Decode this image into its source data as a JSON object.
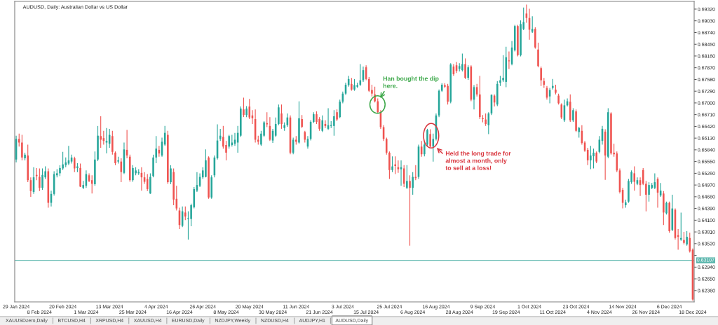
{
  "chart_data": {
    "type": "candlestick",
    "title": "AUDUSD, Daily: Australian Dollar vs US Dollar",
    "categories": [
      "29 Jan 2024",
      null,
      null,
      null,
      null,
      null,
      null,
      null,
      "8 Feb 2024",
      null,
      null,
      null,
      null,
      null,
      null,
      null,
      "20 Feb 2024",
      null,
      null,
      null,
      null,
      null,
      null,
      null,
      "1 Mar 2024",
      null,
      null,
      null,
      null,
      null,
      null,
      null,
      "13 Mar 2024",
      null,
      null,
      null,
      null,
      null,
      null,
      null,
      "25 Mar 2024",
      null,
      null,
      null,
      null,
      null,
      null,
      null,
      "4 Apr 2024",
      null,
      null,
      null,
      null,
      null,
      null,
      null,
      "16 Apr 2024",
      null,
      null,
      null,
      null,
      null,
      null,
      null,
      "26 Apr 2024",
      null,
      null,
      null,
      null,
      null,
      null,
      null,
      "8 May 2024",
      null,
      null,
      null,
      null,
      null,
      null,
      null,
      "20 May 2024",
      null,
      null,
      null,
      null,
      null,
      null,
      null,
      "30 May 2024",
      null,
      null,
      null,
      null,
      null,
      null,
      null,
      "11 Jun 2024",
      null,
      null,
      null,
      null,
      null,
      null,
      null,
      "21 Jun 2024",
      null,
      null,
      null,
      null,
      null,
      null,
      null,
      "3 Jul 2024",
      null,
      null,
      null,
      null,
      null,
      null,
      null,
      "15 Jul 2024",
      null,
      null,
      null,
      null,
      null,
      null,
      null,
      "25 Jul 2024",
      null,
      null,
      null,
      null,
      null,
      null,
      null,
      "6 Aug 2024",
      null,
      null,
      null,
      null,
      null,
      null,
      null,
      "16 Aug 2024",
      null,
      null,
      null,
      null,
      null,
      null,
      null,
      "28 Aug 2024",
      null,
      null,
      null,
      null,
      null,
      null,
      null,
      "9 Sep 2024",
      null,
      null,
      null,
      null,
      null,
      null,
      null,
      "19 Sep 2024",
      null,
      null,
      null,
      null,
      null,
      null,
      null,
      "1 Oct 2024",
      null,
      null,
      null,
      null,
      null,
      null,
      null,
      "11 Oct 2024",
      null,
      null,
      null,
      null,
      null,
      null,
      null,
      "23 Oct 2024",
      null,
      null,
      null,
      null,
      null,
      null,
      null,
      "4 Nov 2024",
      null,
      null,
      null,
      null,
      null,
      null,
      null,
      "14 Nov 2024",
      null,
      null,
      null,
      null,
      null,
      null,
      null,
      "26 Nov 2024",
      null,
      null,
      null,
      null,
      null,
      null,
      null,
      "6 Dec 2024",
      null,
      null,
      null,
      null,
      null,
      null,
      null,
      "18 Dec 2024"
    ],
    "ohlc": [
      [
        0.656,
        0.6619,
        0.6553,
        0.6611
      ],
      [
        0.6611,
        0.6624,
        0.6592,
        0.6602
      ],
      [
        0.6602,
        0.6621,
        0.6558,
        0.6565
      ],
      [
        0.6563,
        0.6577,
        0.6558,
        0.6572
      ],
      [
        0.657,
        0.6597,
        0.6504,
        0.6509
      ],
      [
        0.6509,
        0.6516,
        0.6468,
        0.6482
      ],
      [
        0.648,
        0.6541,
        0.6475,
        0.6516
      ],
      [
        0.6522,
        0.6539,
        0.6509,
        0.6519
      ],
      [
        0.6517,
        0.6538,
        0.6482,
        0.649
      ],
      [
        0.649,
        0.6538,
        0.6485,
        0.6522
      ],
      [
        0.6516,
        0.6543,
        0.6512,
        0.6531
      ],
      [
        0.6531,
        0.6538,
        0.6441,
        0.6453
      ],
      [
        0.6453,
        0.6483,
        0.6444,
        0.6475
      ],
      [
        0.6475,
        0.6531,
        0.6471,
        0.6524
      ],
      [
        0.6521,
        0.6536,
        0.6516,
        0.6526
      ],
      [
        0.6526,
        0.6546,
        0.6519,
        0.6539
      ],
      [
        0.6538,
        0.6579,
        0.6534,
        0.6548
      ],
      [
        0.6546,
        0.6565,
        0.6541,
        0.6553
      ],
      [
        0.655,
        0.6594,
        0.6546,
        0.6558
      ],
      [
        0.6555,
        0.6572,
        0.655,
        0.6565
      ],
      [
        0.6563,
        0.6567,
        0.6529,
        0.6538
      ],
      [
        0.6539,
        0.6551,
        0.6529,
        0.6543
      ],
      [
        0.6539,
        0.655,
        0.6492,
        0.6493
      ],
      [
        0.649,
        0.6507,
        0.6487,
        0.6497
      ],
      [
        0.6495,
        0.6533,
        0.649,
        0.6524
      ],
      [
        0.6521,
        0.6526,
        0.6504,
        0.6507
      ],
      [
        0.6509,
        0.6521,
        0.6476,
        0.65
      ],
      [
        0.6499,
        0.658,
        0.6495,
        0.656
      ],
      [
        0.656,
        0.6643,
        0.6556,
        0.6619
      ],
      [
        0.6618,
        0.6667,
        0.6589,
        0.6609
      ],
      [
        0.6613,
        0.6631,
        0.6597,
        0.6606
      ],
      [
        0.6602,
        0.6638,
        0.6575,
        0.6606
      ],
      [
        0.6599,
        0.6636,
        0.6589,
        0.6621
      ],
      [
        0.6618,
        0.6631,
        0.6572,
        0.6579
      ],
      [
        0.6577,
        0.658,
        0.6546,
        0.6551
      ],
      [
        0.6555,
        0.6567,
        0.655,
        0.6558
      ],
      [
        0.6555,
        0.6563,
        0.6504,
        0.6529
      ],
      [
        0.6527,
        0.6602,
        0.6524,
        0.6585
      ],
      [
        0.6584,
        0.6633,
        0.6563,
        0.657
      ],
      [
        0.6567,
        0.6572,
        0.6505,
        0.6509
      ],
      [
        0.6509,
        0.6546,
        0.6505,
        0.6539
      ],
      [
        0.6526,
        0.6541,
        0.6521,
        0.6533
      ],
      [
        0.6526,
        0.6536,
        0.6522,
        0.6529
      ],
      [
        0.6527,
        0.6541,
        0.6483,
        0.6516
      ],
      [
        0.6516,
        0.6529,
        0.65,
        0.6505
      ],
      [
        0.6512,
        0.6524,
        0.6482,
        0.6487
      ],
      [
        0.6476,
        0.6526,
        0.6475,
        0.6517
      ],
      [
        0.6519,
        0.6572,
        0.6516,
        0.6565
      ],
      [
        0.6565,
        0.6618,
        0.6551,
        0.6587
      ],
      [
        0.6584,
        0.6594,
        0.6567,
        0.6575
      ],
      [
        0.657,
        0.6614,
        0.6567,
        0.6604
      ],
      [
        0.6597,
        0.6643,
        0.6594,
        0.6626
      ],
      [
        0.6621,
        0.6631,
        0.65,
        0.6504
      ],
      [
        0.6504,
        0.6546,
        0.6499,
        0.6538
      ],
      [
        0.6529,
        0.6538,
        0.6447,
        0.6461
      ],
      [
        0.6463,
        0.6495,
        0.6434,
        0.6439
      ],
      [
        0.6434,
        0.6441,
        0.6388,
        0.6398
      ],
      [
        0.6396,
        0.6444,
        0.6393,
        0.6432
      ],
      [
        0.6429,
        0.6444,
        0.641,
        0.6419
      ],
      [
        0.6413,
        0.6432,
        0.6362,
        0.6415
      ],
      [
        0.6413,
        0.6451,
        0.6395,
        0.6447
      ],
      [
        0.6442,
        0.6492,
        0.6439,
        0.6487
      ],
      [
        0.6483,
        0.6529,
        0.648,
        0.6497
      ],
      [
        0.6495,
        0.6526,
        0.6492,
        0.6517
      ],
      [
        0.6516,
        0.6541,
        0.6512,
        0.6533
      ],
      [
        0.6517,
        0.6585,
        0.6516,
        0.6558
      ],
      [
        0.6565,
        0.6568,
        0.6463,
        0.6466
      ],
      [
        0.6466,
        0.6521,
        0.6463,
        0.6516
      ],
      [
        0.6521,
        0.657,
        0.6516,
        0.6565
      ],
      [
        0.6563,
        0.6647,
        0.656,
        0.6607
      ],
      [
        0.6611,
        0.6636,
        0.6606,
        0.6619
      ],
      [
        0.6616,
        0.6643,
        0.6587,
        0.6592
      ],
      [
        0.6596,
        0.6606,
        0.6558,
        0.6577
      ],
      [
        0.6592,
        0.6621,
        0.6587,
        0.6618
      ],
      [
        0.6596,
        0.6621,
        0.6592,
        0.6602
      ],
      [
        0.6599,
        0.6626,
        0.6594,
        0.6609
      ],
      [
        0.6602,
        0.6643,
        0.6577,
        0.6626
      ],
      [
        0.6619,
        0.6691,
        0.6616,
        0.6686
      ],
      [
        0.6684,
        0.6713,
        0.6665,
        0.667
      ],
      [
        0.667,
        0.6692,
        0.6665,
        0.6686
      ],
      [
        0.6691,
        0.671,
        0.666,
        0.6664
      ],
      [
        0.6669,
        0.6682,
        0.6648,
        0.6662
      ],
      [
        0.666,
        0.6684,
        0.6602,
        0.6609
      ],
      [
        0.6609,
        0.6619,
        0.6597,
        0.6604
      ],
      [
        0.6597,
        0.6631,
        0.6594,
        0.6624
      ],
      [
        0.6619,
        0.6655,
        0.6616,
        0.6652
      ],
      [
        0.665,
        0.6677,
        0.664,
        0.6647
      ],
      [
        0.6643,
        0.6665,
        0.6606,
        0.6609
      ],
      [
        0.6607,
        0.6636,
        0.6601,
        0.6631
      ],
      [
        0.6619,
        0.6664,
        0.6616,
        0.6648
      ],
      [
        0.6648,
        0.6696,
        0.6645,
        0.6689
      ],
      [
        0.6674,
        0.6696,
        0.6636,
        0.6648
      ],
      [
        0.6638,
        0.6652,
        0.6631,
        0.6645
      ],
      [
        0.6645,
        0.6674,
        0.6641,
        0.6664
      ],
      [
        0.6664,
        0.6669,
        0.6573,
        0.6577
      ],
      [
        0.6577,
        0.6614,
        0.6573,
        0.6609
      ],
      [
        0.6609,
        0.6618,
        0.6597,
        0.6604
      ],
      [
        0.6602,
        0.6704,
        0.6599,
        0.6662
      ],
      [
        0.666,
        0.667,
        0.6638,
        0.6641
      ],
      [
        0.6628,
        0.6631,
        0.6602,
        0.6609
      ],
      [
        0.6592,
        0.6618,
        0.6587,
        0.6611
      ],
      [
        0.6611,
        0.6657,
        0.6607,
        0.6653
      ],
      [
        0.6653,
        0.6677,
        0.665,
        0.6672
      ],
      [
        0.6672,
        0.6679,
        0.6648,
        0.6653
      ],
      [
        0.666,
        0.6665,
        0.6631,
        0.6636
      ],
      [
        0.6631,
        0.6669,
        0.6628,
        0.6657
      ],
      [
        0.6648,
        0.6657,
        0.6638,
        0.6643
      ],
      [
        0.6636,
        0.6687,
        0.6633,
        0.6645
      ],
      [
        0.6643,
        0.6655,
        0.6638,
        0.6645
      ],
      [
        0.6643,
        0.6682,
        0.6619,
        0.6667
      ],
      [
        0.6677,
        0.6684,
        0.6655,
        0.6659
      ],
      [
        0.6665,
        0.6708,
        0.6662,
        0.6703
      ],
      [
        0.6703,
        0.6728,
        0.6699,
        0.6723
      ],
      [
        0.6723,
        0.675,
        0.672,
        0.6745
      ],
      [
        0.6744,
        0.6767,
        0.674,
        0.6759
      ],
      [
        0.6747,
        0.6762,
        0.673,
        0.6733
      ],
      [
        0.6733,
        0.6759,
        0.673,
        0.6744
      ],
      [
        0.674,
        0.675,
        0.6737,
        0.6744
      ],
      [
        0.6745,
        0.6796,
        0.6742,
        0.6756
      ],
      [
        0.6756,
        0.679,
        0.6752,
        0.6781
      ],
      [
        0.6788,
        0.6793,
        0.6756,
        0.6759
      ],
      [
        0.6759,
        0.6764,
        0.6727,
        0.673
      ],
      [
        0.6732,
        0.6745,
        0.6716,
        0.6723
      ],
      [
        0.6721,
        0.674,
        0.6701,
        0.6704
      ],
      [
        0.6704,
        0.6711,
        0.6674,
        0.6677
      ],
      [
        0.6677,
        0.6682,
        0.6636,
        0.664
      ],
      [
        0.664,
        0.6645,
        0.6606,
        0.6611
      ],
      [
        0.6611,
        0.6614,
        0.6572,
        0.6577
      ],
      [
        0.6577,
        0.658,
        0.6512,
        0.6534
      ],
      [
        0.6534,
        0.6568,
        0.6529,
        0.6543
      ],
      [
        0.6548,
        0.6568,
        0.6524,
        0.6544
      ],
      [
        0.6541,
        0.6558,
        0.6527,
        0.6536
      ],
      [
        0.6536,
        0.6558,
        0.6495,
        0.6541
      ],
      [
        0.6538,
        0.6546,
        0.6492,
        0.65
      ],
      [
        0.649,
        0.6546,
        0.6487,
        0.6507
      ],
      [
        0.6507,
        0.6521,
        0.6347,
        0.649
      ],
      [
        0.649,
        0.6529,
        0.6473,
        0.6517
      ],
      [
        0.6517,
        0.6546,
        0.6509,
        0.6514
      ],
      [
        0.6517,
        0.6597,
        0.6512,
        0.6592
      ],
      [
        0.6592,
        0.6606,
        0.6567,
        0.6573
      ],
      [
        0.6573,
        0.6604,
        0.6568,
        0.6597
      ],
      [
        0.6597,
        0.6636,
        0.6592,
        0.6633
      ],
      [
        0.6623,
        0.6635,
        0.659,
        0.6592
      ],
      [
        0.6592,
        0.6624,
        0.6555,
        0.6611
      ],
      [
        0.6611,
        0.6674,
        0.6607,
        0.6669
      ],
      [
        0.6669,
        0.6733,
        0.6665,
        0.673
      ],
      [
        0.673,
        0.6749,
        0.6727,
        0.6745
      ],
      [
        0.6744,
        0.6749,
        0.6737,
        0.674
      ],
      [
        0.6742,
        0.6747,
        0.6696,
        0.6703
      ],
      [
        0.6703,
        0.6798,
        0.6699,
        0.6795
      ],
      [
        0.679,
        0.6796,
        0.6767,
        0.6771
      ],
      [
        0.6793,
        0.6801,
        0.6774,
        0.6779
      ],
      [
        0.6784,
        0.6798,
        0.6778,
        0.6791
      ],
      [
        0.6781,
        0.6822,
        0.6778,
        0.6796
      ],
      [
        0.6796,
        0.681,
        0.6759,
        0.6762
      ],
      [
        0.6762,
        0.6793,
        0.6757,
        0.6788
      ],
      [
        0.679,
        0.6793,
        0.6704,
        0.6708
      ],
      [
        0.6708,
        0.6744,
        0.6684,
        0.6739
      ],
      [
        0.6739,
        0.6747,
        0.6716,
        0.6721
      ],
      [
        0.6721,
        0.6767,
        0.666,
        0.6665
      ],
      [
        0.6662,
        0.667,
        0.6652,
        0.666
      ],
      [
        0.6659,
        0.6674,
        0.6643,
        0.6648
      ],
      [
        0.6645,
        0.6677,
        0.6623,
        0.6674
      ],
      [
        0.6674,
        0.6721,
        0.667,
        0.672
      ],
      [
        0.6718,
        0.6721,
        0.6691,
        0.6701
      ],
      [
        0.6696,
        0.6754,
        0.6692,
        0.6747
      ],
      [
        0.675,
        0.6767,
        0.6742,
        0.6756
      ],
      [
        0.6756,
        0.6818,
        0.6752,
        0.6762
      ],
      [
        0.6752,
        0.6839,
        0.6739,
        0.6813
      ],
      [
        0.6805,
        0.6827,
        0.6784,
        0.6803
      ],
      [
        0.6796,
        0.6853,
        0.6793,
        0.6837
      ],
      [
        0.683,
        0.6893,
        0.6827,
        0.689
      ],
      [
        0.689,
        0.6893,
        0.6815,
        0.6818
      ],
      [
        0.6818,
        0.6904,
        0.6815,
        0.6895
      ],
      [
        0.6883,
        0.6936,
        0.688,
        0.69
      ],
      [
        0.6921,
        0.6943,
        0.6898,
        0.691
      ],
      [
        0.691,
        0.6933,
        0.6856,
        0.6881
      ],
      [
        0.6876,
        0.6914,
        0.6873,
        0.6883
      ],
      [
        0.6883,
        0.6887,
        0.6834,
        0.6837
      ],
      [
        0.6832,
        0.6849,
        0.6788,
        0.6791
      ],
      [
        0.6786,
        0.679,
        0.6742,
        0.6756
      ],
      [
        0.6754,
        0.6762,
        0.6737,
        0.6745
      ],
      [
        0.6737,
        0.6742,
        0.6708,
        0.6713
      ],
      [
        0.6716,
        0.6737,
        0.6699,
        0.6732
      ],
      [
        0.6737,
        0.6759,
        0.6733,
        0.6742
      ],
      [
        0.6733,
        0.6745,
        0.6721,
        0.6725
      ],
      [
        0.6718,
        0.6723,
        0.6696,
        0.6699
      ],
      [
        0.6696,
        0.6699,
        0.666,
        0.6664
      ],
      [
        0.6657,
        0.6708,
        0.6653,
        0.6694
      ],
      [
        0.6694,
        0.6711,
        0.6691,
        0.6704
      ],
      [
        0.6703,
        0.6721,
        0.6653,
        0.6657
      ],
      [
        0.6657,
        0.6687,
        0.6653,
        0.6682
      ],
      [
        0.6679,
        0.6684,
        0.6628,
        0.6631
      ],
      [
        0.6628,
        0.6641,
        0.6614,
        0.6638
      ],
      [
        0.6631,
        0.6645,
        0.6597,
        0.6601
      ],
      [
        0.6602,
        0.6606,
        0.6579,
        0.6582
      ],
      [
        0.6584,
        0.6589,
        0.6546,
        0.6558
      ],
      [
        0.6558,
        0.6594,
        0.6536,
        0.657
      ],
      [
        0.6568,
        0.6587,
        0.6538,
        0.6577
      ],
      [
        0.6577,
        0.658,
        0.6551,
        0.6555
      ],
      [
        0.6579,
        0.6618,
        0.6575,
        0.6609
      ],
      [
        0.6606,
        0.6643,
        0.6597,
        0.6636
      ],
      [
        0.6629,
        0.6635,
        0.651,
        0.657
      ],
      [
        0.6567,
        0.6687,
        0.6563,
        0.6677
      ],
      [
        0.6674,
        0.6677,
        0.6572,
        0.6575
      ],
      [
        0.6577,
        0.6599,
        0.6567,
        0.6573
      ],
      [
        0.6575,
        0.658,
        0.6529,
        0.6533
      ],
      [
        0.6533,
        0.6538,
        0.6476,
        0.648
      ],
      [
        0.6485,
        0.649,
        0.6439,
        0.6453
      ],
      [
        0.6447,
        0.6461,
        0.6441,
        0.6454
      ],
      [
        0.6456,
        0.6512,
        0.6453,
        0.6507
      ],
      [
        0.6504,
        0.6533,
        0.65,
        0.6529
      ],
      [
        0.6526,
        0.6543,
        0.6483,
        0.6505
      ],
      [
        0.65,
        0.6516,
        0.6497,
        0.6509
      ],
      [
        0.6509,
        0.6516,
        0.647,
        0.6497
      ],
      [
        0.6534,
        0.6539,
        0.6497,
        0.65
      ],
      [
        0.65,
        0.6507,
        0.6432,
        0.6473
      ],
      [
        0.6473,
        0.6504,
        0.6456,
        0.6497
      ],
      [
        0.649,
        0.6502,
        0.6487,
        0.6497
      ],
      [
        0.649,
        0.6526,
        0.6487,
        0.6504
      ],
      [
        0.6512,
        0.6516,
        0.6441,
        0.6478
      ],
      [
        0.6471,
        0.6502,
        0.6468,
        0.6483
      ],
      [
        0.6476,
        0.6482,
        0.6398,
        0.6429
      ],
      [
        0.6427,
        0.6456,
        0.6424,
        0.6453
      ],
      [
        0.6453,
        0.6456,
        0.6379,
        0.6383
      ],
      [
        0.6386,
        0.6473,
        0.6383,
        0.6439
      ],
      [
        0.6436,
        0.6439,
        0.6362,
        0.6366
      ],
      [
        0.6373,
        0.6388,
        0.6337,
        0.6369
      ],
      [
        0.6362,
        0.6429,
        0.6359,
        0.6366
      ],
      [
        0.6361,
        0.6381,
        0.635,
        0.6354
      ],
      [
        0.635,
        0.6383,
        0.6347,
        0.6369
      ],
      [
        0.6366,
        0.6379,
        0.633,
        0.6333
      ],
      [
        0.6337,
        0.634,
        0.6211,
        0.6214
      ]
    ],
    "colors": [
      "#26a69a",
      "#ef5350",
      "#ef5350",
      "#26a69a",
      "#ef5350",
      "#ef5350",
      "#26a69a",
      "#ef5350",
      "#ef5350",
      "#26a69a",
      "#26a69a",
      "#ef5350",
      "#26a69a",
      "#26a69a",
      "#26a69a",
      "#26a69a",
      "#26a69a",
      "#26a69a",
      "#26a69a",
      "#26a69a",
      "#ef5350",
      "#26a69a",
      "#ef5350",
      "#26a69a",
      "#26a69a",
      "#ef5350",
      "#ef5350",
      "#26a69a",
      "#26a69a",
      "#ef5350",
      "#ef5350",
      "#26a69a",
      "#26a69a",
      "#ef5350",
      "#ef5350",
      "#26a69a",
      "#ef5350",
      "#26a69a",
      "#ef5350",
      "#ef5350",
      "#26a69a",
      "#26a69a",
      "#26a69a",
      "#ef5350",
      "#ef5350",
      "#ef5350",
      "#26a69a",
      "#26a69a",
      "#26a69a",
      "#ef5350",
      "#26a69a",
      "#26a69a",
      "#ef5350",
      "#26a69a",
      "#ef5350",
      "#ef5350",
      "#ef5350",
      "#26a69a",
      "#ef5350",
      "#26a69a",
      "#26a69a",
      "#26a69a",
      "#26a69a",
      "#26a69a",
      "#26a69a",
      "#26a69a",
      "#ef5350",
      "#26a69a",
      "#26a69a",
      "#26a69a",
      "#26a69a",
      "#ef5350",
      "#ef5350",
      "#26a69a",
      "#26a69a",
      "#26a69a",
      "#26a69a",
      "#26a69a",
      "#ef5350",
      "#26a69a",
      "#ef5350",
      "#ef5350",
      "#ef5350",
      "#ef5350",
      "#26a69a",
      "#26a69a",
      "#ef5350",
      "#ef5350",
      "#26a69a",
      "#26a69a",
      "#26a69a",
      "#ef5350",
      "#26a69a",
      "#26a69a",
      "#ef5350",
      "#26a69a",
      "#ef5350",
      "#26a69a",
      "#ef5350",
      "#ef5350",
      "#26a69a",
      "#26a69a",
      "#26a69a",
      "#ef5350",
      "#ef5350",
      "#26a69a",
      "#ef5350",
      "#26a69a",
      "#26a69a",
      "#26a69a",
      "#ef5350",
      "#26a69a",
      "#26a69a",
      "#26a69a",
      "#26a69a",
      "#ef5350",
      "#26a69a",
      "#26a69a",
      "#26a69a",
      "#26a69a",
      "#ef5350",
      "#ef5350",
      "#ef5350",
      "#ef5350",
      "#ef5350",
      "#ef5350",
      "#ef5350",
      "#ef5350",
      "#ef5350",
      "#26a69a",
      "#ef5350",
      "#ef5350",
      "#26a69a",
      "#ef5350",
      "#26a69a",
      "#ef5350",
      "#26a69a",
      "#ef5350",
      "#26a69a",
      "#ef5350",
      "#26a69a",
      "#26a69a",
      "#ef5350",
      "#26a69a",
      "#26a69a",
      "#26a69a",
      "#26a69a",
      "#ef5350",
      "#ef5350",
      "#26a69a",
      "#ef5350",
      "#ef5350",
      "#26a69a",
      "#26a69a",
      "#ef5350",
      "#26a69a",
      "#ef5350",
      "#26a69a",
      "#ef5350",
      "#ef5350",
      "#ef5350",
      "#ef5350",
      "#26a69a",
      "#26a69a",
      "#ef5350",
      "#26a69a",
      "#26a69a",
      "#26a69a",
      "#26a69a",
      "#ef5350",
      "#26a69a",
      "#26a69a",
      "#ef5350",
      "#26a69a",
      "#26a69a",
      "#ef5350",
      "#ef5350",
      "#26a69a",
      "#ef5350",
      "#ef5350",
      "#ef5350",
      "#ef5350",
      "#ef5350",
      "#26a69a",
      "#26a69a",
      "#ef5350",
      "#ef5350",
      "#ef5350",
      "#26a69a",
      "#26a69a",
      "#ef5350",
      "#26a69a",
      "#ef5350",
      "#26a69a",
      "#ef5350",
      "#ef5350",
      "#ef5350",
      "#26a69a",
      "#26a69a",
      "#ef5350",
      "#26a69a",
      "#26a69a",
      "#ef5350",
      "#26a69a",
      "#ef5350",
      "#ef5350",
      "#ef5350",
      "#ef5350",
      "#ef5350",
      "#26a69a",
      "#26a69a",
      "#26a69a",
      "#ef5350",
      "#26a69a",
      "#ef5350",
      "#ef5350",
      "#ef5350",
      "#26a69a",
      "#26a69a",
      "#26a69a",
      "#ef5350",
      "#26a69a",
      "#ef5350",
      "#26a69a",
      "#ef5350",
      "#26a69a",
      "#ef5350",
      "#ef5350",
      "#26a69a",
      "#ef5350",
      "#26a69a",
      "#ef5350",
      "#ef5350"
    ],
    "ylim": [
      0.6208,
      0.6951
    ],
    "yticks": [
      {
        "value": 0.6236,
        "label": "0.62360"
      },
      {
        "value": 0.6265,
        "label": "0.62650"
      },
      {
        "value": 0.6294,
        "label": "0.62940"
      },
      {
        "value": 0.6323,
        "label": null
      },
      {
        "value": 0.6352,
        "label": "0.63520"
      },
      {
        "value": 0.6381,
        "label": "0.63810"
      },
      {
        "value": 0.641,
        "label": "0.64100"
      },
      {
        "value": 0.6439,
        "label": "0.64390"
      },
      {
        "value": 0.6468,
        "label": "0.64680"
      },
      {
        "value": 0.6497,
        "label": "0.64970"
      },
      {
        "value": 0.6526,
        "label": "0.65260"
      },
      {
        "value": 0.6555,
        "label": "0.65550"
      },
      {
        "value": 0.6584,
        "label": "0.65840"
      },
      {
        "value": 0.6613,
        "label": "0.66130"
      },
      {
        "value": 0.6642,
        "label": "0.66420"
      },
      {
        "value": 0.6671,
        "label": "0.66710"
      },
      {
        "value": 0.67,
        "label": "0.67000"
      },
      {
        "value": 0.6729,
        "label": "0.67290"
      },
      {
        "value": 0.6758,
        "label": "0.67580"
      },
      {
        "value": 0.6787,
        "label": "0.67870"
      },
      {
        "value": 0.6816,
        "label": "0.68160"
      },
      {
        "value": 0.6845,
        "label": "0.68450"
      },
      {
        "value": 0.6874,
        "label": "0.68740"
      },
      {
        "value": 0.6903,
        "label": "0.69030"
      },
      {
        "value": 0.6932,
        "label": "0.69320"
      }
    ],
    "ref_lines": [
      {
        "axis": "y",
        "value": 0.63107,
        "label": "0.63107",
        "color": "#5fb8af"
      }
    ],
    "annotations": [
      "Han bought the dip\nhere.",
      "Held the long trade for\nalmost a month, only\nto sell at a loss!",
      "XAUUSDzero,Daily",
      "BTCUSD,H4",
      "XRPUSD,H4",
      "XAUUSD,H4",
      "EURUSD,Daily",
      "NZDJPY,Weekly",
      "NZDUSD,H4",
      "AUDJPY,H1",
      "AUDUSD,Daily"
    ]
  }
}
